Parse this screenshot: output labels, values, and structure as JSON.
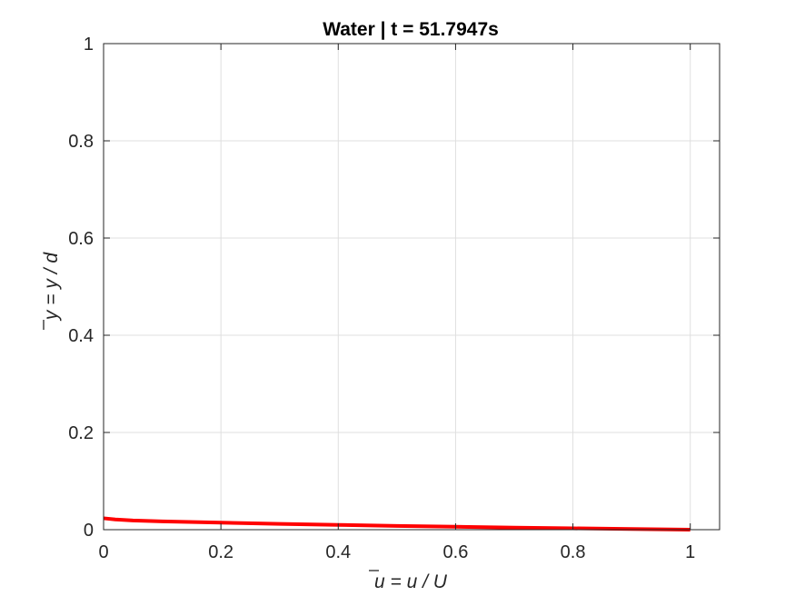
{
  "chart_data": {
    "type": "line",
    "title": "Water | t = 51.7947s",
    "xlabel": "u = u / U",
    "ylabel": "y = y / d",
    "xlim": [
      0,
      1.05
    ],
    "ylim": [
      0,
      1
    ],
    "xticks": [
      0,
      0.2,
      0.4,
      0.6,
      0.8,
      1
    ],
    "yticks": [
      0,
      0.2,
      0.4,
      0.6,
      0.8,
      1
    ],
    "xtick_labels": [
      "0",
      "0.2",
      "0.4",
      "0.6",
      "0.8",
      "1"
    ],
    "ytick_labels": [
      "0",
      "0.2",
      "0.4",
      "0.6",
      "0.8",
      "1"
    ],
    "grid": true,
    "box": true,
    "series": [
      {
        "color": "#ff0000",
        "x": [
          0,
          0.02,
          0.05,
          0.1,
          0.2,
          0.3,
          0.4,
          0.5,
          0.6,
          0.7,
          0.8,
          0.9,
          1.0
        ],
        "y": [
          0.0235,
          0.021,
          0.019,
          0.017,
          0.0145,
          0.012,
          0.0098,
          0.0078,
          0.006,
          0.0043,
          0.0028,
          0.0014,
          0.0
        ]
      }
    ]
  }
}
